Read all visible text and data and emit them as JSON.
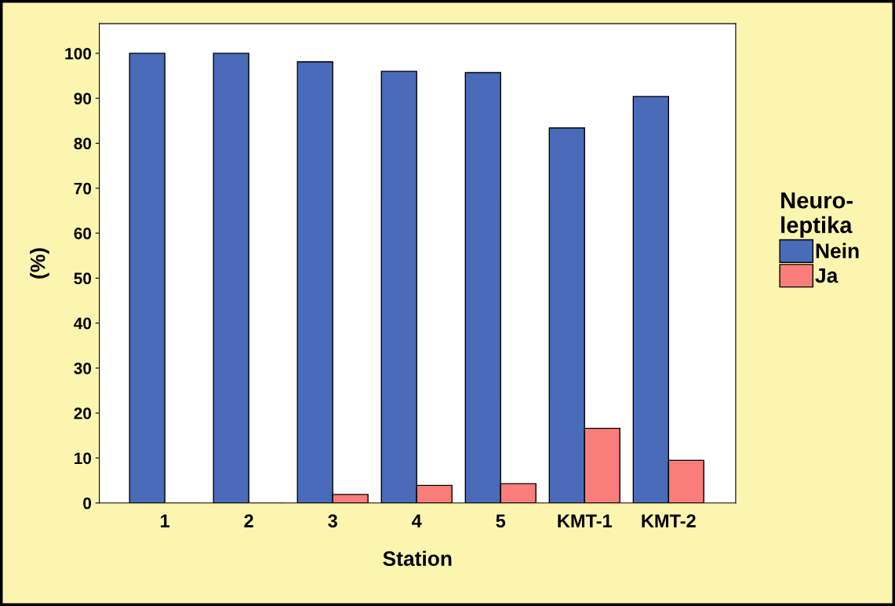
{
  "chart_data": {
    "type": "bar",
    "categories": [
      "1",
      "2",
      "3",
      "4",
      "5",
      "KMT-1",
      "KMT-2"
    ],
    "series": [
      {
        "name": "Nein",
        "color": "#4a6bb9",
        "values": [
          100,
          100,
          98.1,
          96.0,
          95.7,
          83.4,
          90.4
        ]
      },
      {
        "name": "Ja",
        "color": "#f97d79",
        "values": [
          0,
          0,
          1.9,
          3.9,
          4.3,
          16.6,
          9.5
        ]
      }
    ],
    "xlabel": "Station",
    "ylabel": "(%)",
    "legend_title": "Neuro-\nleptika",
    "legend": "right",
    "ylim": [
      0,
      106.6
    ],
    "yticks": [
      0,
      10,
      20,
      30,
      40,
      50,
      60,
      70,
      80,
      90,
      100
    ],
    "grid": false
  }
}
